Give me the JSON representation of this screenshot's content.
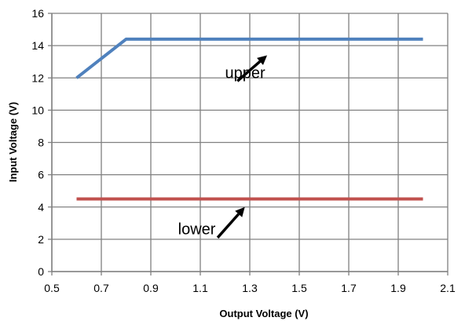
{
  "chart_data": {
    "type": "line",
    "title": "",
    "xlabel": "Output Voltage (V)",
    "ylabel": "Input Voltage (V)",
    "xlim": [
      0.5,
      2.1
    ],
    "ylim": [
      0,
      16
    ],
    "x_ticks": [
      0.5,
      0.7,
      0.9,
      1.1,
      1.3,
      1.5,
      1.7,
      1.9,
      2.1
    ],
    "x_tick_labels": [
      "0.5",
      "0.7",
      "0.9",
      "1.1",
      "1.3",
      "1.5",
      "1.7",
      "1.9",
      "2.1"
    ],
    "y_ticks": [
      0,
      2,
      4,
      6,
      8,
      10,
      12,
      14,
      16
    ],
    "y_tick_labels": [
      "0",
      "2",
      "4",
      "6",
      "8",
      "10",
      "12",
      "14",
      "16"
    ],
    "grid": true,
    "legend": "none",
    "series": [
      {
        "x": [
          0.6,
          0.8,
          2.0
        ],
        "y": [
          12.0,
          14.4,
          14.4
        ],
        "color": "#4f81bd"
      },
      {
        "x": [
          0.6,
          2.0
        ],
        "y": [
          4.5,
          4.5
        ],
        "color": "#c0504d"
      }
    ],
    "annotations": [
      {
        "text": "upper",
        "text_at": [
          1.2,
          12.0
        ],
        "arrow_from": [
          1.25,
          11.8
        ],
        "arrow_to": [
          1.37,
          13.4
        ]
      },
      {
        "text": "lower",
        "text_at": [
          1.01,
          2.3
        ],
        "arrow_from": [
          1.17,
          2.1
        ],
        "arrow_to": [
          1.28,
          4.0
        ]
      }
    ]
  }
}
